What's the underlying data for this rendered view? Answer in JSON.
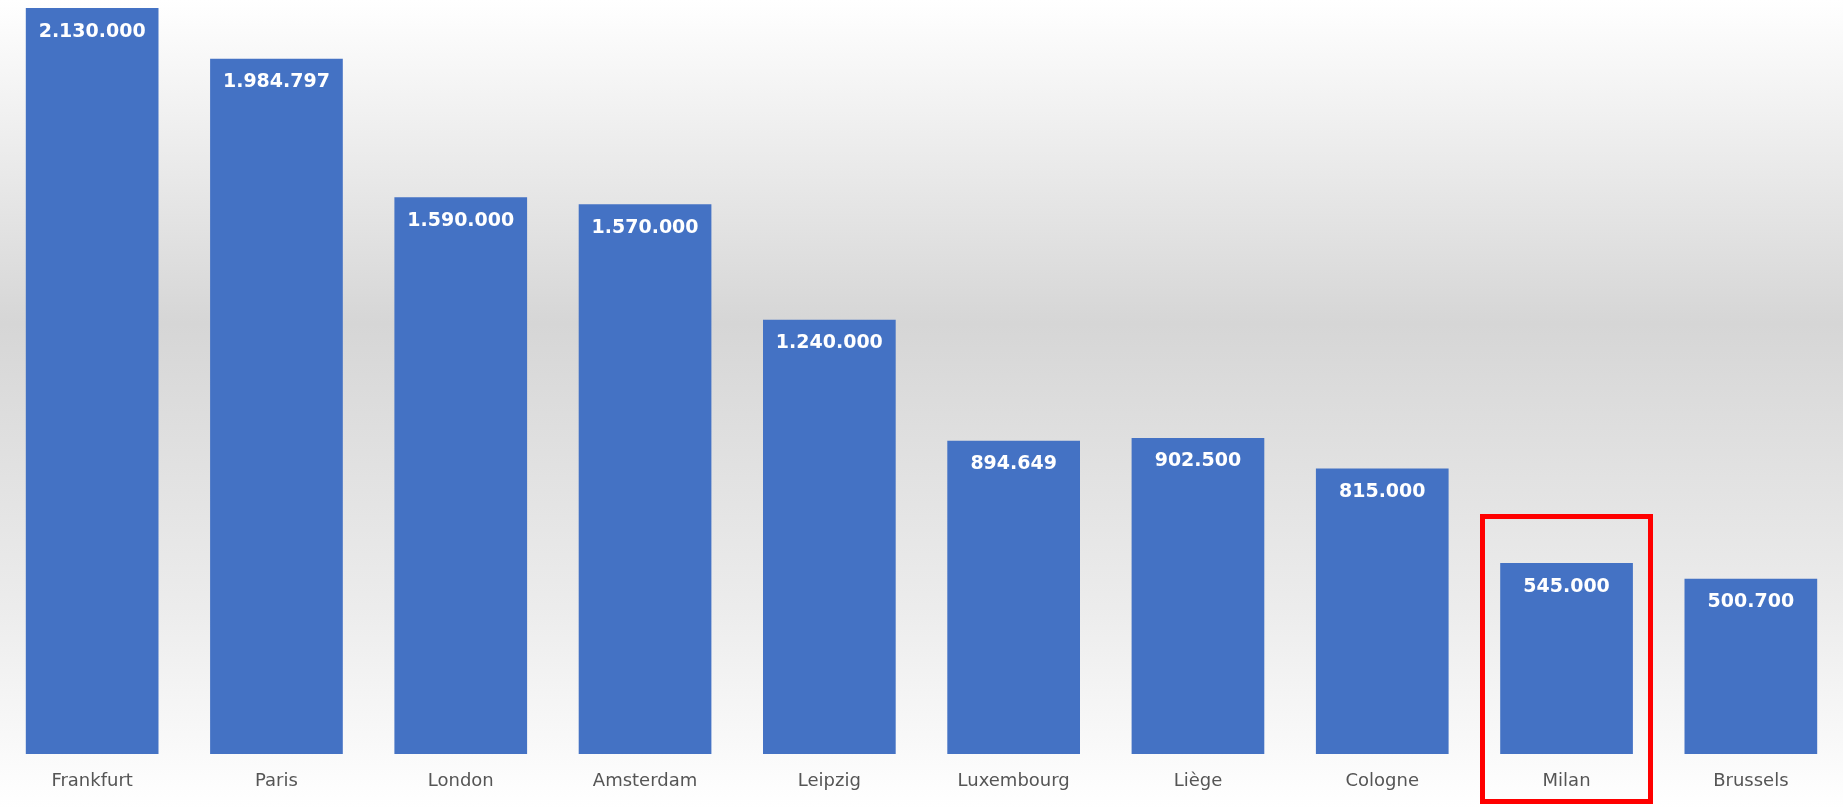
{
  "chart_data": {
    "type": "bar",
    "categories": [
      "Frankfurt",
      "Paris",
      "London",
      "Amsterdam",
      "Leipzig",
      "Luxembourg",
      "Liège",
      "Cologne",
      "Milan",
      "Brussels"
    ],
    "values": [
      2130000,
      1984797,
      1590000,
      1570000,
      1240000,
      894649,
      902500,
      815000,
      545000,
      500700
    ],
    "value_labels": [
      "2.130.000",
      "1.984.797",
      "1.590.000",
      "1.570.000",
      "1.240.000",
      "894.649",
      "902.500",
      "815.000",
      "545.000",
      "500.700"
    ],
    "color": "#4472c4"
  }
}
